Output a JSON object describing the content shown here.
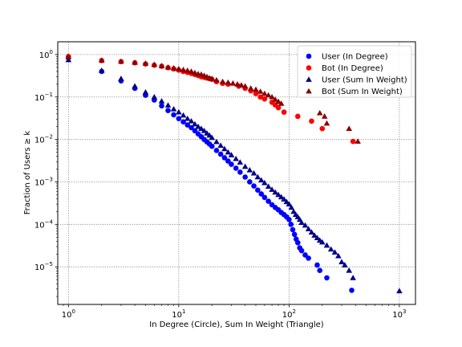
{
  "chart_data": {
    "type": "scatter",
    "xlabel": "In Degree (Circle), Sum In Weight (Triangle)",
    "ylabel": "Fraction of Users ≥ k",
    "xscale": "log",
    "yscale": "log",
    "xlim": [
      0.8,
      1400
    ],
    "ylim": [
      1.3e-06,
      2
    ],
    "grid": true,
    "legend_position": "top-right",
    "x_ticks": [
      {
        "value": 1,
        "base": "10",
        "exp": "0"
      },
      {
        "value": 10,
        "base": "10",
        "exp": "1"
      },
      {
        "value": 100,
        "base": "10",
        "exp": "2"
      },
      {
        "value": 1000,
        "base": "10",
        "exp": "3"
      }
    ],
    "y_ticks": [
      {
        "value": 1,
        "base": "10",
        "exp": "0"
      },
      {
        "value": 0.1,
        "base": "10",
        "exp": "−1"
      },
      {
        "value": 0.01,
        "base": "10",
        "exp": "−2"
      },
      {
        "value": 0.001,
        "base": "10",
        "exp": "−3"
      },
      {
        "value": 0.0001,
        "base": "10",
        "exp": "−4"
      },
      {
        "value": 1e-05,
        "base": "10",
        "exp": "−5"
      }
    ],
    "series": [
      {
        "name": "User (In Degree)",
        "marker": "circle",
        "color": "#0000ff",
        "points": [
          [
            1,
            0.85
          ],
          [
            2,
            0.4
          ],
          [
            3,
            0.24
          ],
          [
            4,
            0.16
          ],
          [
            5,
            0.11
          ],
          [
            6,
            0.085
          ],
          [
            7,
            0.062
          ],
          [
            8,
            0.048
          ],
          [
            9,
            0.038
          ],
          [
            10,
            0.031
          ],
          [
            11,
            0.026
          ],
          [
            12,
            0.022
          ],
          [
            13,
            0.019
          ],
          [
            14,
            0.016
          ],
          [
            15,
            0.0135
          ],
          [
            16,
            0.0116
          ],
          [
            17,
            0.01
          ],
          [
            18,
            0.0088
          ],
          [
            19,
            0.0078
          ],
          [
            20,
            0.0069
          ],
          [
            22,
            0.0055
          ],
          [
            24,
            0.0045
          ],
          [
            26,
            0.0037
          ],
          [
            28,
            0.0031
          ],
          [
            30,
            0.0026
          ],
          [
            33,
            0.0021
          ],
          [
            36,
            0.0017
          ],
          [
            40,
            0.0013
          ],
          [
            44,
            0.001
          ],
          [
            48,
            0.0008
          ],
          [
            52,
            0.00064
          ],
          [
            56,
            0.00052
          ],
          [
            60,
            0.00043
          ],
          [
            65,
            0.00035
          ],
          [
            70,
            0.00029
          ],
          [
            75,
            0.00025
          ],
          [
            80,
            0.00022
          ],
          [
            85,
            0.00019
          ],
          [
            90,
            0.00017
          ],
          [
            95,
            0.00015
          ],
          [
            100,
            0.00013
          ],
          [
            104,
            0.0001
          ],
          [
            108,
            7.5e-05
          ],
          [
            112,
            5.8e-05
          ],
          [
            116,
            4.5e-05
          ],
          [
            120,
            3.7e-05
          ],
          [
            125,
            2.8e-05
          ],
          [
            130,
            2.4e-05
          ],
          [
            140,
            1.9e-05
          ],
          [
            150,
            1.6e-05
          ],
          [
            180,
            1.1e-05
          ],
          [
            190,
            8.2e-06
          ],
          [
            220,
            5.5e-06
          ],
          [
            370,
            2.8e-06
          ]
        ]
      },
      {
        "name": "Bot (In Degree)",
        "marker": "circle",
        "color": "#ff0000",
        "points": [
          [
            1,
            0.9
          ],
          [
            2,
            0.72
          ],
          [
            3,
            0.68
          ],
          [
            4,
            0.64
          ],
          [
            5,
            0.6
          ],
          [
            6,
            0.56
          ],
          [
            7,
            0.53
          ],
          [
            8,
            0.49
          ],
          [
            9,
            0.46
          ],
          [
            10,
            0.43
          ],
          [
            11,
            0.4
          ],
          [
            12,
            0.38
          ],
          [
            13,
            0.36
          ],
          [
            14,
            0.34
          ],
          [
            15,
            0.32
          ],
          [
            16,
            0.3
          ],
          [
            17,
            0.29
          ],
          [
            18,
            0.28
          ],
          [
            19,
            0.27
          ],
          [
            20,
            0.26
          ],
          [
            22,
            0.23
          ],
          [
            25,
            0.21
          ],
          [
            28,
            0.2
          ],
          [
            35,
            0.18
          ],
          [
            40,
            0.16
          ],
          [
            45,
            0.14
          ],
          [
            50,
            0.12
          ],
          [
            55,
            0.1
          ],
          [
            60,
            0.09
          ],
          [
            70,
            0.075
          ],
          [
            75,
            0.065
          ],
          [
            80,
            0.056
          ],
          [
            90,
            0.044
          ],
          [
            120,
            0.035
          ],
          [
            160,
            0.027
          ],
          [
            200,
            0.018
          ],
          [
            380,
            0.009
          ]
        ]
      },
      {
        "name": "User (Sum In Weight)",
        "marker": "triangle",
        "color": "#00008b",
        "points": [
          [
            1,
            0.75
          ],
          [
            2,
            0.42
          ],
          [
            3,
            0.27
          ],
          [
            4,
            0.18
          ],
          [
            5,
            0.13
          ],
          [
            6,
            0.1
          ],
          [
            7,
            0.08
          ],
          [
            8,
            0.064
          ],
          [
            9,
            0.052
          ],
          [
            10,
            0.044
          ],
          [
            11,
            0.037
          ],
          [
            12,
            0.031
          ],
          [
            13,
            0.027
          ],
          [
            14,
            0.023
          ],
          [
            15,
            0.02
          ],
          [
            16,
            0.018
          ],
          [
            17,
            0.016
          ],
          [
            18,
            0.014
          ],
          [
            19,
            0.0125
          ],
          [
            20,
            0.011
          ],
          [
            22,
            0.0088
          ],
          [
            24,
            0.0072
          ],
          [
            26,
            0.006
          ],
          [
            28,
            0.005
          ],
          [
            30,
            0.0043
          ],
          [
            33,
            0.0035
          ],
          [
            36,
            0.0029
          ],
          [
            40,
            0.0023
          ],
          [
            44,
            0.0019
          ],
          [
            48,
            0.0016
          ],
          [
            52,
            0.0013
          ],
          [
            56,
            0.0011
          ],
          [
            60,
            0.00095
          ],
          [
            65,
            0.00078
          ],
          [
            70,
            0.00066
          ],
          [
            75,
            0.00057
          ],
          [
            80,
            0.0005
          ],
          [
            85,
            0.00044
          ],
          [
            90,
            0.00039
          ],
          [
            95,
            0.00034
          ],
          [
            100,
            0.0003
          ],
          [
            105,
            0.00025
          ],
          [
            110,
            0.0002
          ],
          [
            115,
            0.00017
          ],
          [
            120,
            0.00015
          ],
          [
            125,
            0.00013
          ],
          [
            130,
            0.00011
          ],
          [
            140,
            9.5e-05
          ],
          [
            150,
            7.8e-05
          ],
          [
            160,
            6.5e-05
          ],
          [
            170,
            5.5e-05
          ],
          [
            180,
            4.8e-05
          ],
          [
            190,
            4.2e-05
          ],
          [
            200,
            3.8e-05
          ],
          [
            220,
            3.2e-05
          ],
          [
            240,
            2.6e-05
          ],
          [
            260,
            2.2e-05
          ],
          [
            280,
            1.8e-05
          ],
          [
            300,
            1.3e-05
          ],
          [
            320,
            1.1e-05
          ],
          [
            350,
            8.2e-06
          ],
          [
            380,
            5.5e-06
          ],
          [
            1000,
            2.7e-06
          ]
        ]
      },
      {
        "name": "Bot (Sum In Weight)",
        "marker": "triangle",
        "color": "#8b0000",
        "points": [
          [
            1,
            0.88
          ],
          [
            2,
            0.73
          ],
          [
            3,
            0.69
          ],
          [
            4,
            0.65
          ],
          [
            5,
            0.62
          ],
          [
            6,
            0.58
          ],
          [
            7,
            0.54
          ],
          [
            8,
            0.5
          ],
          [
            9,
            0.48
          ],
          [
            10,
            0.46
          ],
          [
            11,
            0.44
          ],
          [
            12,
            0.42
          ],
          [
            13,
            0.4
          ],
          [
            14,
            0.37
          ],
          [
            15,
            0.35
          ],
          [
            16,
            0.34
          ],
          [
            17,
            0.32
          ],
          [
            18,
            0.3
          ],
          [
            19,
            0.28
          ],
          [
            20,
            0.27
          ],
          [
            22,
            0.25
          ],
          [
            25,
            0.23
          ],
          [
            28,
            0.22
          ],
          [
            31,
            0.21
          ],
          [
            34,
            0.2
          ],
          [
            37,
            0.19
          ],
          [
            40,
            0.18
          ],
          [
            45,
            0.16
          ],
          [
            50,
            0.15
          ],
          [
            55,
            0.135
          ],
          [
            60,
            0.12
          ],
          [
            65,
            0.11
          ],
          [
            70,
            0.1
          ],
          [
            75,
            0.087
          ],
          [
            80,
            0.078
          ],
          [
            85,
            0.07
          ],
          [
            190,
            0.042
          ],
          [
            210,
            0.035
          ],
          [
            220,
            0.024
          ],
          [
            350,
            0.018
          ],
          [
            420,
            0.009
          ]
        ]
      }
    ]
  }
}
